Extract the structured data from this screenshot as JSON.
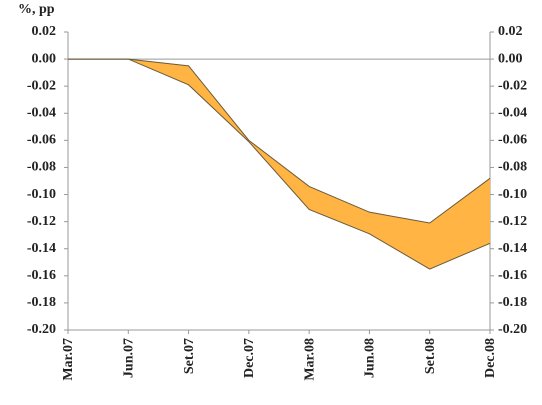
{
  "chart_data": {
    "type": "band",
    "y_label": "%, pp",
    "categories": [
      "Mar.07",
      "Jun.07",
      "Set.07",
      "Dec.07",
      "Mar.08",
      "Jun.08",
      "Set.08",
      "Dec.08"
    ],
    "series": [
      {
        "color": "#ffb443",
        "values": [
          0,
          0,
          -0.005,
          -0.06,
          -0.094,
          -0.113,
          -0.121,
          -0.088
        ]
      },
      {
        "color": "#ffb443",
        "values": [
          0,
          0,
          -0.019,
          -0.061,
          -0.111,
          -0.129,
          -0.155,
          -0.136
        ]
      }
    ],
    "ylim": [
      -0.2,
      0.02
    ],
    "yticks": [
      0.02,
      {
        "value": 0,
        "label": "0.00"
      },
      -0.02,
      -0.04,
      -0.06,
      -0.08,
      {
        "value": -0.1,
        "label": "-0.10"
      },
      -0.12,
      -0.14,
      -0.16,
      -0.18,
      {
        "value": -0.2,
        "label": "-0.20"
      }
    ],
    "y2lim": [
      -0.2,
      0.02
    ],
    "y2ticks": [
      0.02,
      {
        "value": 0,
        "label": "0.00"
      },
      -0.02,
      -0.04,
      -0.06,
      -0.08,
      {
        "value": -0.1,
        "label": "-0.10"
      },
      -0.12,
      -0.14,
      -0.16,
      -0.18,
      {
        "value": -0.2,
        "label": "-0.20"
      }
    ]
  }
}
